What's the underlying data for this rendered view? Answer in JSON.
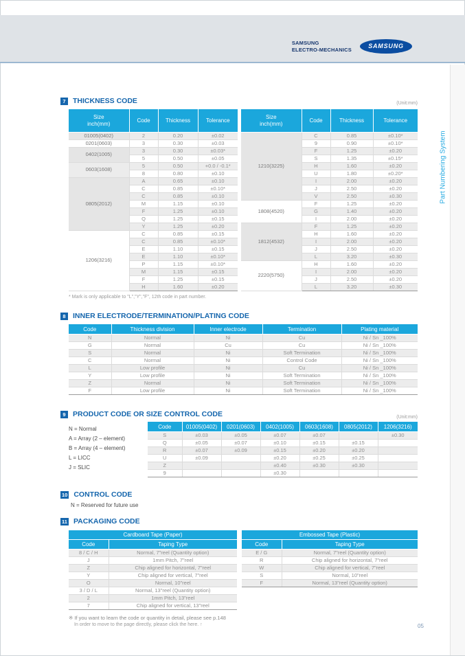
{
  "page": {
    "number": "05"
  },
  "header": {
    "brand_line1": "SAMSUNG",
    "brand_line2": "ELECTRO-MECHANICS",
    "logo_text": "SAMSUNG"
  },
  "sidebar": {
    "label": "Part Numbering System"
  },
  "sections": {
    "thickness": {
      "number": "7",
      "title": "THICKNESS CODE",
      "unit": "(Unit:mm)",
      "headers": {
        "size_l1": "Size",
        "size_l2": "inch(mm)",
        "code": "Code",
        "thickness": "Thickness",
        "tolerance": "Tolerance"
      },
      "left_groups": [
        {
          "size": "01005(0402)",
          "rows": [
            [
              "2",
              "0.20",
              "±0.02"
            ]
          ]
        },
        {
          "size": "0201(0603)",
          "rows": [
            [
              "3",
              "0.30",
              "±0.03"
            ]
          ]
        },
        {
          "size": "0402(1005)",
          "rows": [
            [
              "3",
              "0.30",
              "±0.03*"
            ],
            [
              "5",
              "0.50",
              "±0.05"
            ]
          ]
        },
        {
          "size": "0603(1608)",
          "rows": [
            [
              "5",
              "0.50",
              "+0.0 / -0.1*"
            ],
            [
              "8",
              "0.80",
              "±0.10"
            ]
          ]
        },
        {
          "size": "0805(2012)",
          "rows": [
            [
              "A",
              "0.65",
              "±0.10"
            ],
            [
              "C",
              "0.85",
              "±0.10*"
            ],
            [
              "C",
              "0.85",
              "±0.10"
            ],
            [
              "M",
              "1.15",
              "±0.10"
            ],
            [
              "F",
              "1.25",
              "±0.10"
            ],
            [
              "Q",
              "1.25",
              "±0.15"
            ],
            [
              "Y",
              "1.25",
              "±0.20"
            ]
          ]
        },
        {
          "size": "1206(3216)",
          "rows": [
            [
              "C",
              "0.85",
              "±0.15"
            ],
            [
              "C",
              "0.85",
              "±0.10*"
            ],
            [
              "E",
              "1.10",
              "±0.15"
            ],
            [
              "E",
              "1.10",
              "±0.10*"
            ],
            [
              "P",
              "1.15",
              "±0.10*"
            ],
            [
              "M",
              "1.15",
              "±0.15"
            ],
            [
              "F",
              "1.25",
              "±0.15"
            ],
            [
              "H",
              "1.60",
              "±0.20"
            ]
          ]
        }
      ],
      "right_groups": [
        {
          "size": "1210(3225)",
          "rows": [
            [
              "C",
              "0.85",
              "±0.10*"
            ],
            [
              "9",
              "0.90",
              "±0.10*"
            ],
            [
              "F",
              "1.25",
              "±0.20"
            ],
            [
              "S",
              "1.35",
              "±0.15*"
            ],
            [
              "H",
              "1.60",
              "±0.20"
            ],
            [
              "U",
              "1.80",
              "±0.20*"
            ],
            [
              "I",
              "2.00",
              "±0.20"
            ],
            [
              "J",
              "2.50",
              "±0.20"
            ],
            [
              "V",
              "2.50",
              "±0.30"
            ]
          ]
        },
        {
          "size": "1808(4520)",
          "rows": [
            [
              "F",
              "1.25",
              "±0.20"
            ],
            [
              "G",
              "1.40",
              "±0.20"
            ],
            [
              "I",
              "2.00",
              "±0.20"
            ]
          ]
        },
        {
          "size": "1812(4532)",
          "rows": [
            [
              "F",
              "1.25",
              "±0.20"
            ],
            [
              "H",
              "1.60",
              "±0.20"
            ],
            [
              "I",
              "2.00",
              "±0.20"
            ],
            [
              "J",
              "2.50",
              "±0.20"
            ],
            [
              "L",
              "3.20",
              "±0.30"
            ]
          ]
        },
        {
          "size": "2220(5750)",
          "rows": [
            [
              "H",
              "1.60",
              "±0.20"
            ],
            [
              "I",
              "2.00",
              "±0.20"
            ],
            [
              "J",
              "2.50",
              "±0.20"
            ],
            [
              "L",
              "3.20",
              "±0.30"
            ]
          ]
        }
      ],
      "footnote": "* Mark is only applicable to \"L\",\"Y\",\"F\", 12th code in part number."
    },
    "electrode": {
      "number": "8",
      "title": "INNER ELECTRODE/TERMINATION/PLATING CODE",
      "headers": [
        "Code",
        "Thickness division",
        "Inner electrode",
        "Termination",
        "Plating material"
      ],
      "rows": [
        [
          "N",
          "Normal",
          "Ni",
          "Cu",
          "Ni / Sn _100%"
        ],
        [
          "G",
          "Normal",
          "Cu",
          "Cu",
          "Ni / Sn _100%"
        ],
        [
          "S",
          "Normal",
          "Ni",
          "Soft Termination",
          "Ni / Sn _100%"
        ],
        [
          "C",
          "Normal",
          "Ni",
          "Control Code",
          "Ni / Sn _100%"
        ],
        [
          "L",
          "Low profile",
          "Ni",
          "Cu",
          "Ni / Sn _100%"
        ],
        [
          "Y",
          "Low profile",
          "Ni",
          "Soft Termination",
          "Ni / Sn _100%"
        ],
        [
          "Z",
          "Normal",
          "Ni",
          "Soft Termination",
          "Ni / Sn _100%"
        ],
        [
          "F",
          "Low profile",
          "Ni",
          "Soft Termination",
          "Ni / Sn _100%"
        ]
      ]
    },
    "product": {
      "number": "9",
      "title": "PRODUCT CODE OR SIZE CONTROL CODE",
      "unit": "(Unit:mm)",
      "legend": [
        "N = Normal",
        "A = Array (2 – element)",
        "B = Array (4 – element)",
        "L = LICC",
        "J = SLIC"
      ],
      "headers": [
        "Code",
        "01005(0402)",
        "0201(0603)",
        "0402(1005)",
        "0603(1608)",
        "0805(2012)",
        "1206(3216)"
      ],
      "rows": [
        [
          "S",
          "±0.03",
          "±0.05",
          "±0.07",
          "±0.07",
          "",
          "±0.30"
        ],
        [
          "Q",
          "±0.05",
          "±0.07",
          "±0.10",
          "±0.15",
          "±0.15",
          ""
        ],
        [
          "R",
          "±0.07",
          "±0.09",
          "±0.15",
          "±0.20",
          "±0.20",
          ""
        ],
        [
          "U",
          "±0.09",
          "",
          "±0.20",
          "±0.25",
          "±0.25",
          ""
        ],
        [
          "Z",
          "",
          "",
          "±0.40",
          "±0.30",
          "±0.30",
          ""
        ],
        [
          "9",
          "",
          "",
          "±0.30",
          "",
          "",
          ""
        ]
      ]
    },
    "control": {
      "number": "10",
      "title": "CONTROL CODE",
      "note": "N = Reserved for future use"
    },
    "packaging": {
      "number": "11",
      "title": "PACKAGING CODE",
      "cardboard": {
        "title": "Cardboard Tape (Paper)",
        "headers": [
          "Code",
          "Taping Type"
        ],
        "rows": [
          [
            "8 / C / H",
            "Normal, 7\"reel (Quantity option)"
          ],
          [
            "J",
            "1mm Pitch, 7\"reel"
          ],
          [
            "Z",
            "Chip aligned for horizontal, 7\"reel"
          ],
          [
            "Y",
            "Chip aligned for vertical, 7\"reel"
          ],
          [
            "O",
            "Normal, 10\"reel"
          ],
          [
            "3 / D / L",
            "Normal, 13\"reel (Quantity option)"
          ],
          [
            "2",
            "1mm Pitch, 13\"reel"
          ],
          [
            "7",
            "Chip aligned for vertical, 13\"reel"
          ]
        ]
      },
      "embossed": {
        "title": "Embossed Tape  (Plastic)",
        "headers": [
          "Code",
          "Taping Type"
        ],
        "rows": [
          [
            "E / G",
            "Normal, 7\"reel (Quantity option)"
          ],
          [
            "R",
            "Chip aligned for horizontal, 7\"reel"
          ],
          [
            "W",
            "Chip aligned for vertical, 7\"reel"
          ],
          [
            "S",
            "Normal, 10\"reel"
          ],
          [
            "F",
            "Normal, 13\"reel (Quantity option)"
          ]
        ]
      },
      "footnote_line1": "※ If you want to learn the code or quantity in detail, please see p.148",
      "footnote_line2": "In order to move to the page directly, please click the here. ↑"
    }
  },
  "colors": {
    "accent": "#1ba7dc",
    "section_blue": "#1566ad",
    "sidebar_cyan": "#29abe2",
    "logo_navy": "#0b4da1"
  }
}
